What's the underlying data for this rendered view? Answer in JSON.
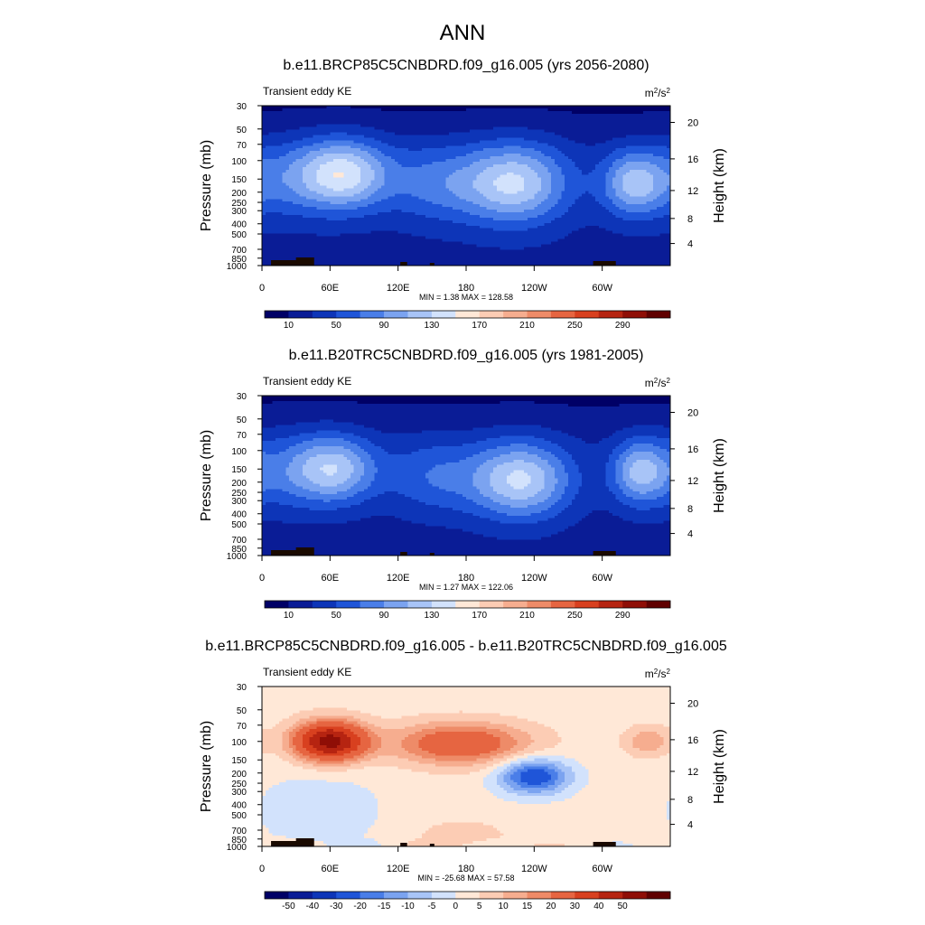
{
  "figure_title": "ANN",
  "colors": {
    "seq": [
      "#000066",
      "#0a1c96",
      "#0d35b8",
      "#1f55d8",
      "#4a7ee8",
      "#7ba3f0",
      "#a8c4f7",
      "#d2e2fc",
      "#ffe8d7",
      "#fcccb4",
      "#f6ad8f",
      "#ee8b68",
      "#e66541",
      "#d8401f",
      "#b62411",
      "#8f0e06",
      "#600000"
    ],
    "div": [
      "#000066",
      "#0a1c96",
      "#0d35b8",
      "#1f55d8",
      "#4a7ee8",
      "#7ba3f0",
      "#a8c4f7",
      "#d2e2fc",
      "#ffe8d7",
      "#fcccb4",
      "#f6ad8f",
      "#ee8b68",
      "#e66541",
      "#d8401f",
      "#b62411",
      "#8f0e06",
      "#600000"
    ],
    "terrain": "#1a0a00"
  },
  "chart_data": [
    {
      "type": "heatmap",
      "title": "b.e11.BRCP85C5CNBDRD.f09_g16.005 (yrs 2056-2080)",
      "left_label": "Transient eddy KE",
      "units": {
        "base": "m",
        "sup1": "2",
        "mid": "/s",
        "sup2": "2"
      },
      "ylabel": "Pressure (mb)",
      "ylabel_right": "Height (km)",
      "stats": "MIN =   1.38  MAX = 128.58",
      "colorbar": "seq",
      "levels": [
        0,
        10,
        30,
        50,
        70,
        90,
        110,
        130,
        150,
        170,
        190,
        210,
        230,
        250,
        270,
        290,
        310
      ],
      "colorbar_labels": [
        "10",
        "50",
        "90",
        "130",
        "170",
        "210",
        "250",
        "290"
      ],
      "x_ticks": [
        {
          "lon": 0,
          "label": "0"
        },
        {
          "lon": 60,
          "label": "60E"
        },
        {
          "lon": 120,
          "label": "120E"
        },
        {
          "lon": 180,
          "label": "180"
        },
        {
          "lon": 240,
          "label": "120W"
        },
        {
          "lon": 300,
          "label": "60W"
        }
      ],
      "xlim": [
        0,
        360
      ],
      "p_ticks": [
        30,
        50,
        70,
        100,
        150,
        200,
        250,
        300,
        400,
        500,
        700,
        850,
        1000
      ],
      "ylim_mb": [
        1000,
        30
      ],
      "h_ticks": [
        4,
        8,
        12,
        16,
        20
      ],
      "field": {
        "base": 22,
        "strato": -16,
        "jets": [
          {
            "lon": 72,
            "p": 135,
            "amp": 118,
            "wl": 28,
            "wp": 0.24
          },
          {
            "lon": 222,
            "p": 165,
            "amp": 112,
            "wl": 34,
            "wp": 0.27
          },
          {
            "lon": 328,
            "p": 165,
            "amp": 92,
            "wl": 20,
            "wp": 0.22
          },
          {
            "lon": 18,
            "p": 150,
            "amp": 46,
            "wl": 30,
            "wp": 0.26
          },
          {
            "lon": 150,
            "p": 165,
            "amp": 48,
            "wl": 30,
            "wp": 0.26
          }
        ]
      }
    },
    {
      "type": "heatmap",
      "title": "b.e11.B20TRC5CNBDRD.f09_g16.005 (yrs 1981-2005)",
      "left_label": "Transient eddy KE",
      "units": {
        "base": "m",
        "sup1": "2",
        "mid": "/s",
        "sup2": "2"
      },
      "ylabel": "Pressure (mb)",
      "ylabel_right": "Height (km)",
      "stats": "MIN =   1.27  MAX = 122.06",
      "colorbar": "seq",
      "levels": [
        0,
        10,
        30,
        50,
        70,
        90,
        110,
        130,
        150,
        170,
        190,
        210,
        230,
        250,
        270,
        290,
        310
      ],
      "colorbar_labels": [
        "10",
        "50",
        "90",
        "130",
        "170",
        "210",
        "250",
        "290"
      ],
      "x_ticks": [
        {
          "lon": 0,
          "label": "0"
        },
        {
          "lon": 60,
          "label": "60E"
        },
        {
          "lon": 120,
          "label": "120E"
        },
        {
          "lon": 180,
          "label": "180"
        },
        {
          "lon": 240,
          "label": "120W"
        },
        {
          "lon": 300,
          "label": "60W"
        }
      ],
      "xlim": [
        0,
        360
      ],
      "p_ticks": [
        30,
        50,
        70,
        100,
        150,
        200,
        250,
        300,
        400,
        500,
        700,
        850,
        1000
      ],
      "ylim_mb": [
        1000,
        30
      ],
      "h_ticks": [
        4,
        8,
        12,
        16,
        20
      ],
      "field": {
        "base": 20,
        "strato": -14,
        "jets": [
          {
            "lon": 65,
            "p": 150,
            "amp": 96,
            "wl": 26,
            "wp": 0.23
          },
          {
            "lon": 228,
            "p": 190,
            "amp": 114,
            "wl": 32,
            "wp": 0.26
          },
          {
            "lon": 333,
            "p": 160,
            "amp": 90,
            "wl": 18,
            "wp": 0.22
          },
          {
            "lon": 20,
            "p": 160,
            "amp": 44,
            "wl": 30,
            "wp": 0.26
          },
          {
            "lon": 150,
            "p": 175,
            "amp": 46,
            "wl": 30,
            "wp": 0.26
          }
        ]
      }
    },
    {
      "type": "heatmap",
      "title": "b.e11.BRCP85C5CNBDRD.f09_g16.005 - b.e11.B20TRC5CNBDRD.f09_g16.005",
      "left_label": "Transient eddy KE",
      "units": {
        "base": "m",
        "sup1": "2",
        "mid": "/s",
        "sup2": "2"
      },
      "ylabel": "Pressure (mb)",
      "ylabel_right": "Height (km)",
      "stats": "MIN = -25.68  MAX =  57.58",
      "colorbar": "div",
      "levels": [
        -60,
        -50,
        -40,
        -30,
        -20,
        -15,
        -10,
        -5,
        0,
        5,
        10,
        15,
        20,
        30,
        40,
        50,
        60
      ],
      "colorbar_labels": [
        "-50",
        "-40",
        "-30",
        "-20",
        "-15",
        "-10",
        "-5",
        "0",
        "5",
        "10",
        "15",
        "20",
        "30",
        "40",
        "50"
      ],
      "x_ticks": [
        {
          "lon": 0,
          "label": "0"
        },
        {
          "lon": 60,
          "label": "60E"
        },
        {
          "lon": 120,
          "label": "120E"
        },
        {
          "lon": 180,
          "label": "180"
        },
        {
          "lon": 240,
          "label": "120W"
        },
        {
          "lon": 300,
          "label": "60W"
        }
      ],
      "xlim": [
        0,
        360
      ],
      "p_ticks": [
        30,
        50,
        70,
        100,
        150,
        200,
        250,
        300,
        400,
        500,
        700,
        850,
        1000
      ],
      "ylim_mb": [
        1000,
        30
      ],
      "h_ticks": [
        4,
        8,
        12,
        16,
        20
      ],
      "field": {
        "base": 2.5,
        "strato": 0,
        "jets": [
          {
            "lon": 60,
            "p": 100,
            "amp": 52,
            "wl": 22,
            "wp": 0.13
          },
          {
            "lon": 175,
            "p": 105,
            "amp": 26,
            "wl": 42,
            "wp": 0.14
          },
          {
            "lon": 340,
            "p": 100,
            "amp": 12,
            "wl": 14,
            "wp": 0.1
          },
          {
            "lon": 240,
            "p": 215,
            "amp": -28,
            "wl": 22,
            "wp": 0.12
          },
          {
            "lon": 50,
            "p": 450,
            "amp": -5,
            "wl": 45,
            "wp": 0.3
          },
          {
            "lon": 175,
            "p": 780,
            "amp": 6,
            "wl": 28,
            "wp": 0.1
          }
        ]
      }
    }
  ]
}
